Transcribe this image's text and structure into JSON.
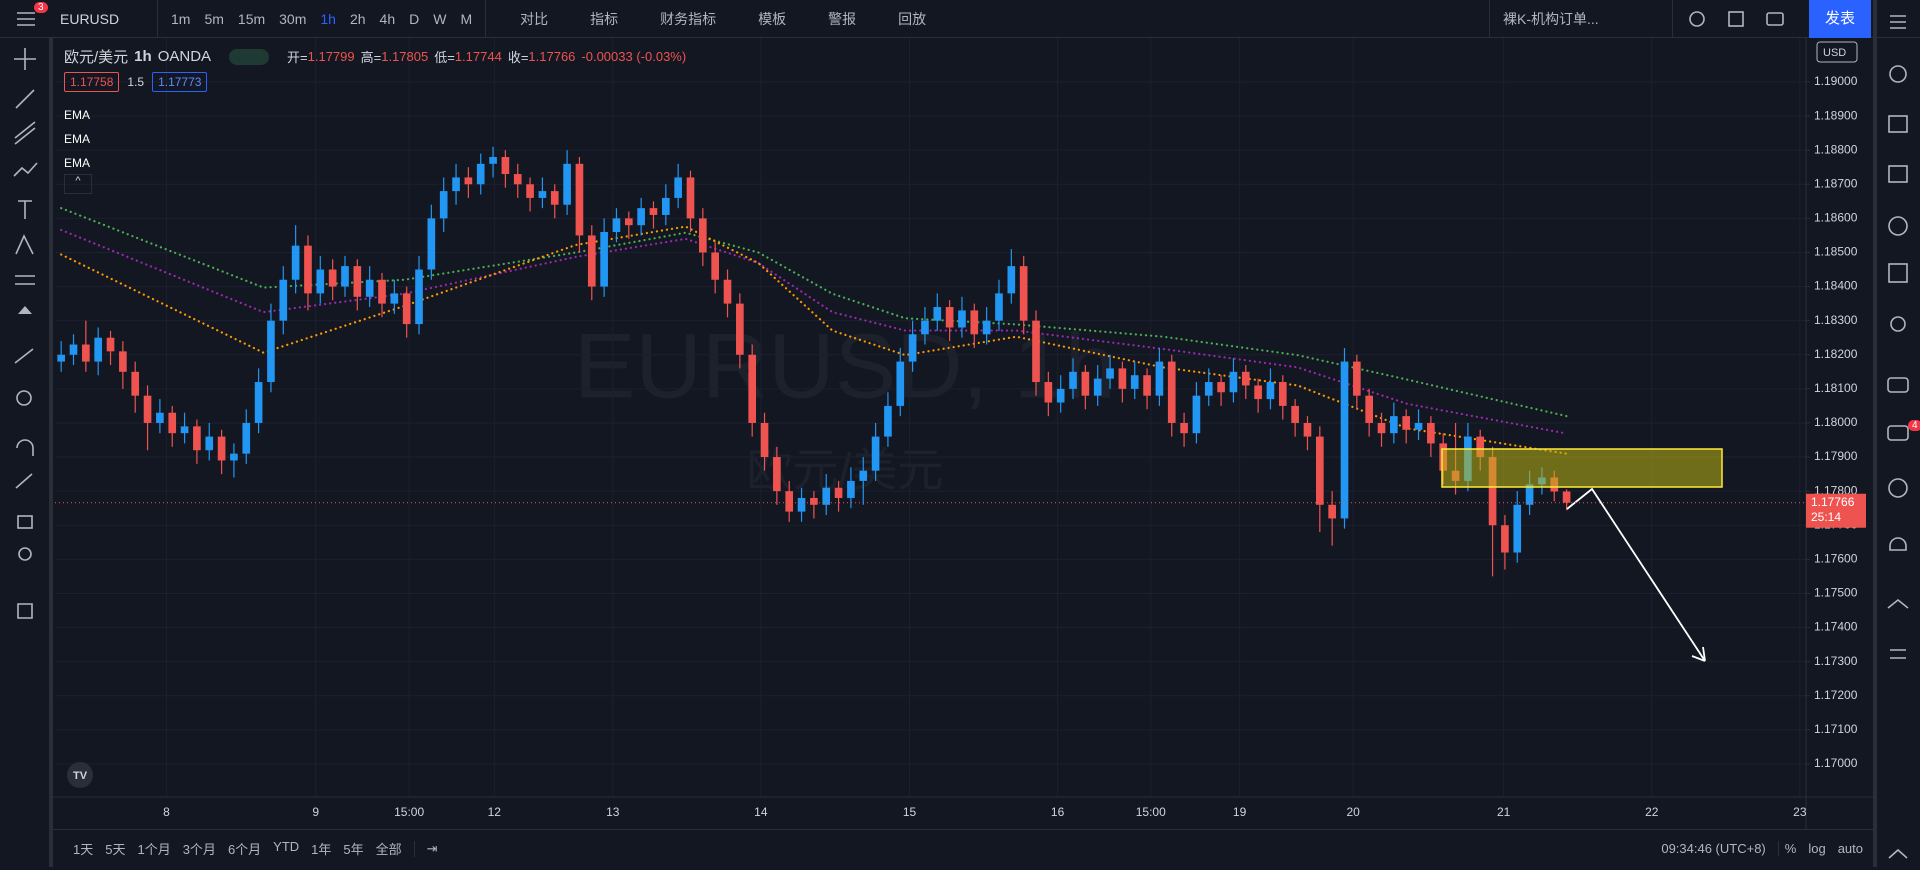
{
  "toolbar": {
    "menu_badge": "3",
    "symbol": "EURUSD",
    "intervals": [
      "1m",
      "5m",
      "15m",
      "30m",
      "1h",
      "2h",
      "4h",
      "D",
      "W",
      "M"
    ],
    "active_interval": "1h",
    "buttons": [
      "对比",
      "指标",
      "财务指标",
      "模板",
      "警报",
      "回放"
    ],
    "layout_name": "裸K-机构订单...",
    "publish": "发表"
  },
  "legend": {
    "pair": "欧元/美元",
    "interval": "1h",
    "source": "OANDA",
    "open_label": "开=",
    "open": "1.17799",
    "high_label": "高=",
    "high": "1.17805",
    "low_label": "低=",
    "low": "1.17744",
    "close_label": "收=",
    "close": "1.17766",
    "change": "-0.00033 (-0.03%)",
    "bid": "1.17758",
    "spread": "1.5",
    "ask": "1.17773"
  },
  "chart_data": {
    "type": "candlestick",
    "watermark": "EURUSD, 1h",
    "watermark_sub": "欧元/美元",
    "currency": "USD",
    "up_color": "#2196f3",
    "down_color": "#ef5350",
    "candles": [
      [
        1.1818,
        1.1824,
        1.1815,
        1.182
      ],
      [
        1.182,
        1.1826,
        1.1817,
        1.1823
      ],
      [
        1.1823,
        1.183,
        1.1815,
        1.1818
      ],
      [
        1.1818,
        1.1828,
        1.1814,
        1.1825
      ],
      [
        1.1825,
        1.1827,
        1.1817,
        1.1821
      ],
      [
        1.1821,
        1.1824,
        1.181,
        1.1815
      ],
      [
        1.1815,
        1.1818,
        1.1803,
        1.1808
      ],
      [
        1.1808,
        1.1811,
        1.1792,
        1.18
      ],
      [
        1.18,
        1.1807,
        1.1797,
        1.1803
      ],
      [
        1.1803,
        1.1805,
        1.1793,
        1.1797
      ],
      [
        1.1797,
        1.1803,
        1.1794,
        1.1799
      ],
      [
        1.1799,
        1.1801,
        1.1788,
        1.1792
      ],
      [
        1.1792,
        1.18,
        1.1789,
        1.1796
      ],
      [
        1.1796,
        1.1798,
        1.1785,
        1.1789
      ],
      [
        1.1789,
        1.1794,
        1.1784,
        1.1791
      ],
      [
        1.1791,
        1.1804,
        1.1788,
        1.18
      ],
      [
        1.18,
        1.1816,
        1.1797,
        1.1812
      ],
      [
        1.1812,
        1.1835,
        1.1809,
        1.183
      ],
      [
        1.183,
        1.1846,
        1.1826,
        1.1842
      ],
      [
        1.1842,
        1.1858,
        1.1838,
        1.1852
      ],
      [
        1.1852,
        1.1855,
        1.1833,
        1.1838
      ],
      [
        1.1838,
        1.1849,
        1.1835,
        1.1845
      ],
      [
        1.1845,
        1.1848,
        1.1836,
        1.184
      ],
      [
        1.184,
        1.1849,
        1.1837,
        1.1846
      ],
      [
        1.1846,
        1.1848,
        1.1833,
        1.1837
      ],
      [
        1.1837,
        1.1846,
        1.1834,
        1.1842
      ],
      [
        1.1842,
        1.1844,
        1.1831,
        1.1835
      ],
      [
        1.1835,
        1.1842,
        1.1832,
        1.1838
      ],
      [
        1.1838,
        1.184,
        1.1825,
        1.1829
      ],
      [
        1.1829,
        1.1849,
        1.1826,
        1.1845
      ],
      [
        1.1845,
        1.1864,
        1.1842,
        1.186
      ],
      [
        1.186,
        1.1872,
        1.1856,
        1.1868
      ],
      [
        1.1868,
        1.1876,
        1.1864,
        1.1872
      ],
      [
        1.1872,
        1.1875,
        1.1866,
        1.187
      ],
      [
        1.187,
        1.1879,
        1.1867,
        1.1876
      ],
      [
        1.1876,
        1.1881,
        1.1872,
        1.1878
      ],
      [
        1.1878,
        1.188,
        1.1869,
        1.1873
      ],
      [
        1.1873,
        1.1876,
        1.1866,
        1.187
      ],
      [
        1.187,
        1.1872,
        1.1862,
        1.1866
      ],
      [
        1.1866,
        1.1872,
        1.1863,
        1.1868
      ],
      [
        1.1868,
        1.187,
        1.186,
        1.1864
      ],
      [
        1.1864,
        1.188,
        1.1861,
        1.1876
      ],
      [
        1.1876,
        1.1878,
        1.185,
        1.1855
      ],
      [
        1.1855,
        1.1858,
        1.1836,
        1.184
      ],
      [
        1.184,
        1.186,
        1.1837,
        1.1856
      ],
      [
        1.1856,
        1.1863,
        1.1853,
        1.186
      ],
      [
        1.186,
        1.1862,
        1.1854,
        1.1858
      ],
      [
        1.1858,
        1.1866,
        1.1855,
        1.1863
      ],
      [
        1.1863,
        1.1865,
        1.1857,
        1.1861
      ],
      [
        1.1861,
        1.187,
        1.1858,
        1.1866
      ],
      [
        1.1866,
        1.1876,
        1.1863,
        1.1872
      ],
      [
        1.1872,
        1.1874,
        1.1856,
        1.186
      ],
      [
        1.186,
        1.1863,
        1.1846,
        1.185
      ],
      [
        1.185,
        1.1853,
        1.1838,
        1.1842
      ],
      [
        1.1842,
        1.1845,
        1.1831,
        1.1835
      ],
      [
        1.1835,
        1.1838,
        1.1816,
        1.182
      ],
      [
        1.182,
        1.1823,
        1.1796,
        1.18
      ],
      [
        1.18,
        1.1803,
        1.1786,
        1.179
      ],
      [
        1.179,
        1.1793,
        1.1776,
        1.178
      ],
      [
        1.178,
        1.1783,
        1.1771,
        1.1774
      ],
      [
        1.1774,
        1.1781,
        1.1771,
        1.1778
      ],
      [
        1.1778,
        1.178,
        1.1772,
        1.1776
      ],
      [
        1.1776,
        1.1785,
        1.1773,
        1.1781
      ],
      [
        1.1781,
        1.1783,
        1.1774,
        1.1778
      ],
      [
        1.1778,
        1.1787,
        1.1775,
        1.1783
      ],
      [
        1.1783,
        1.179,
        1.1776,
        1.1786
      ],
      [
        1.1786,
        1.18,
        1.1783,
        1.1796
      ],
      [
        1.1796,
        1.1809,
        1.1793,
        1.1805
      ],
      [
        1.1805,
        1.1822,
        1.1802,
        1.1818
      ],
      [
        1.1818,
        1.183,
        1.1815,
        1.1826
      ],
      [
        1.1826,
        1.1834,
        1.1823,
        1.183
      ],
      [
        1.183,
        1.1838,
        1.1827,
        1.1834
      ],
      [
        1.1834,
        1.1836,
        1.1824,
        1.1828
      ],
      [
        1.1828,
        1.1837,
        1.1825,
        1.1833
      ],
      [
        1.1833,
        1.1835,
        1.1822,
        1.1826
      ],
      [
        1.1826,
        1.1834,
        1.1823,
        1.183
      ],
      [
        1.183,
        1.1842,
        1.1827,
        1.1838
      ],
      [
        1.1838,
        1.1851,
        1.1835,
        1.1846
      ],
      [
        1.1846,
        1.1849,
        1.1826,
        1.183
      ],
      [
        1.183,
        1.1833,
        1.1808,
        1.1812
      ],
      [
        1.1812,
        1.1815,
        1.1802,
        1.1806
      ],
      [
        1.1806,
        1.1814,
        1.1803,
        1.181
      ],
      [
        1.181,
        1.1819,
        1.1807,
        1.1815
      ],
      [
        1.1815,
        1.1817,
        1.1804,
        1.1808
      ],
      [
        1.1808,
        1.1817,
        1.1805,
        1.1813
      ],
      [
        1.1813,
        1.182,
        1.181,
        1.1816
      ],
      [
        1.1816,
        1.1818,
        1.1806,
        1.181
      ],
      [
        1.181,
        1.1818,
        1.1807,
        1.1814
      ],
      [
        1.1814,
        1.1816,
        1.1804,
        1.1808
      ],
      [
        1.1808,
        1.1822,
        1.1805,
        1.1818
      ],
      [
        1.1818,
        1.182,
        1.1796,
        1.18
      ],
      [
        1.18,
        1.1803,
        1.1793,
        1.1797
      ],
      [
        1.1797,
        1.1812,
        1.1794,
        1.1808
      ],
      [
        1.1808,
        1.1816,
        1.1805,
        1.1812
      ],
      [
        1.1812,
        1.1814,
        1.1805,
        1.1809
      ],
      [
        1.1809,
        1.1819,
        1.1806,
        1.1815
      ],
      [
        1.1815,
        1.1817,
        1.1807,
        1.1811
      ],
      [
        1.1811,
        1.1813,
        1.1803,
        1.1807
      ],
      [
        1.1807,
        1.1816,
        1.1804,
        1.1812
      ],
      [
        1.1812,
        1.1814,
        1.1801,
        1.1805
      ],
      [
        1.1805,
        1.1807,
        1.1796,
        1.18
      ],
      [
        1.18,
        1.1802,
        1.1792,
        1.1796
      ],
      [
        1.1796,
        1.1799,
        1.1768,
        1.1776
      ],
      [
        1.1776,
        1.178,
        1.1764,
        1.1772
      ],
      [
        1.1772,
        1.1822,
        1.1769,
        1.1818
      ],
      [
        1.1818,
        1.182,
        1.1804,
        1.1808
      ],
      [
        1.1808,
        1.181,
        1.1796,
        1.18
      ],
      [
        1.18,
        1.1803,
        1.1793,
        1.1797
      ],
      [
        1.1797,
        1.1806,
        1.1794,
        1.1802
      ],
      [
        1.1802,
        1.1804,
        1.1794,
        1.1798
      ],
      [
        1.1798,
        1.1804,
        1.1795,
        1.18
      ],
      [
        1.18,
        1.1802,
        1.179,
        1.1794
      ],
      [
        1.1794,
        1.1797,
        1.1782,
        1.1786
      ],
      [
        1.1786,
        1.18,
        1.1779,
        1.1783
      ],
      [
        1.1783,
        1.18,
        1.178,
        1.1796
      ],
      [
        1.1796,
        1.1798,
        1.1786,
        1.179
      ],
      [
        1.179,
        1.1793,
        1.1755,
        1.177
      ],
      [
        1.177,
        1.1773,
        1.1757,
        1.1762
      ],
      [
        1.1762,
        1.178,
        1.1759,
        1.1776
      ],
      [
        1.1776,
        1.1786,
        1.1773,
        1.1782
      ],
      [
        1.1782,
        1.1787,
        1.1779,
        1.1784
      ],
      [
        1.1784,
        1.1786,
        1.1777,
        1.17799
      ],
      [
        1.17799,
        1.17805,
        1.17744,
        1.17766
      ]
    ],
    "series": [
      {
        "name": "EMA",
        "color": "#4caf50",
        "x": [
          0,
          16.4,
          27.8,
          41.7,
          50.6,
          56.5,
          62.5,
          68.4,
          77.4,
          89.3,
          100.2,
          109.1,
          122
        ],
        "values": [
          1.1863,
          1.18397,
          1.1842,
          1.185,
          1.18558,
          1.185,
          1.18379,
          1.18307,
          1.18289,
          1.18253,
          1.18199,
          1.18127,
          1.1802
        ]
      },
      {
        "name": "EMA",
        "color": "#9c27b0",
        "x": [
          0,
          16.4,
          27.8,
          41.7,
          50.6,
          56.5,
          62.5,
          68.4,
          77.4,
          89.3,
          100.2,
          109.1,
          122
        ],
        "values": [
          1.18566,
          1.18325,
          1.18379,
          1.18487,
          1.1854,
          1.18469,
          1.18325,
          1.18271,
          1.18271,
          1.18217,
          1.18163,
          1.18056,
          1.17969
        ]
      },
      {
        "name": "EMA",
        "color": "#ff9800",
        "x": [
          0,
          16.4,
          27.8,
          41.7,
          50.6,
          56.5,
          62.5,
          68.4,
          77.4,
          89.3,
          100.2,
          109.1,
          122
        ],
        "values": [
          1.18494,
          1.18206,
          1.18343,
          1.18522,
          1.18576,
          1.18469,
          1.18271,
          1.18199,
          1.18253,
          1.18163,
          1.1811,
          1.17984,
          1.1791
        ]
      }
    ],
    "xlim": [
      -0.5,
      141.4
    ],
    "ylim": [
      1.16903,
      1.19129
    ],
    "yticks": [
      {
        "value": 1.17,
        "label": "1.17000"
      },
      {
        "value": 1.171,
        "label": "1.17100"
      },
      {
        "value": 1.172,
        "label": "1.17200"
      },
      {
        "value": 1.173,
        "label": "1.17300"
      },
      {
        "value": 1.174,
        "label": "1.17400"
      },
      {
        "value": 1.175,
        "label": "1.17500"
      },
      {
        "value": 1.176,
        "label": "1.17600"
      },
      {
        "value": 1.177,
        "label": "1.17700"
      },
      {
        "value": 1.178,
        "label": "1.17800"
      },
      {
        "value": 1.179,
        "label": "1.17900"
      },
      {
        "value": 1.18,
        "label": "1.18000"
      },
      {
        "value": 1.181,
        "label": "1.18100"
      },
      {
        "value": 1.182,
        "label": "1.18200"
      },
      {
        "value": 1.183,
        "label": "1.18300"
      },
      {
        "value": 1.184,
        "label": "1.18400"
      },
      {
        "value": 1.185,
        "label": "1.18500"
      },
      {
        "value": 1.186,
        "label": "1.18600"
      },
      {
        "value": 1.187,
        "label": "1.18700"
      },
      {
        "value": 1.188,
        "label": "1.18800"
      },
      {
        "value": 1.189,
        "label": "1.18900"
      },
      {
        "value": 1.19,
        "label": "1.19000"
      }
    ],
    "xticks": [
      {
        "value": 8.53,
        "label": "8"
      },
      {
        "value": 20.63,
        "label": "9"
      },
      {
        "value": 28.2,
        "label": "15:00"
      },
      {
        "value": 35.1,
        "label": "12"
      },
      {
        "value": 44.7,
        "label": "13"
      },
      {
        "value": 56.7,
        "label": "14"
      },
      {
        "value": 68.75,
        "label": "15"
      },
      {
        "value": 80.75,
        "label": "16"
      },
      {
        "value": 88.3,
        "label": "15:00"
      },
      {
        "value": 95.5,
        "label": "19"
      },
      {
        "value": 104.7,
        "label": "20"
      },
      {
        "value": 116.9,
        "label": "21"
      },
      {
        "value": 128.9,
        "label": "22"
      },
      {
        "value": 140.9,
        "label": "23"
      }
    ],
    "last_price": 1.17766,
    "countdown": "25:14"
  },
  "bottom": {
    "ranges": [
      "1天",
      "5天",
      "1个月",
      "3个月",
      "6个月",
      "YTD",
      "1年",
      "5年",
      "全部"
    ],
    "clock": "09:34:46 (UTC+8)",
    "percent": "%",
    "log": "log",
    "auto": "auto"
  },
  "sidebar": {
    "badge": "4"
  }
}
